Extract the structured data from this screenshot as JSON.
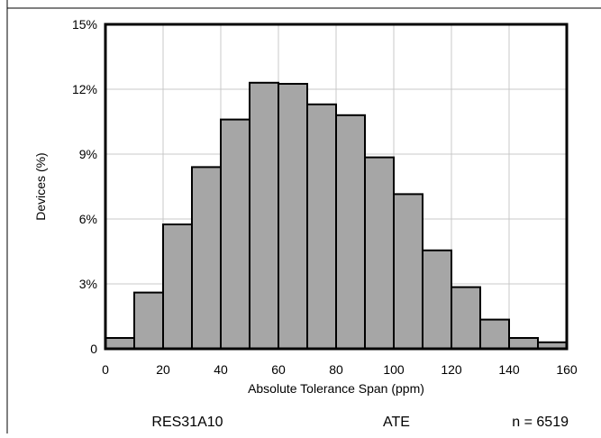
{
  "chart_data": {
    "type": "bar",
    "title": "",
    "xlabel": "Absolute Tolerance Span (ppm)",
    "ylabel": "Devices (%)",
    "xlim": [
      0,
      160
    ],
    "ylim": [
      0,
      15
    ],
    "xticks": [
      "0",
      "20",
      "40",
      "60",
      "80",
      "100",
      "120",
      "140",
      "160"
    ],
    "yticks": [
      "0",
      "3%",
      "6%",
      "9%",
      "12%",
      "15%"
    ],
    "bin_width": 10,
    "bin_starts": [
      0,
      10,
      20,
      30,
      40,
      50,
      60,
      70,
      80,
      90,
      100,
      110,
      120,
      130,
      140,
      150
    ],
    "values": [
      0.5,
      2.6,
      5.75,
      8.4,
      10.6,
      12.3,
      12.25,
      11.3,
      10.8,
      8.85,
      7.15,
      4.55,
      2.85,
      1.35,
      0.5,
      0.3
    ],
    "bar_color": "#a6a6a6",
    "grid": true,
    "legend": "none"
  },
  "footer": {
    "device": "RES31A10",
    "method": "ATE",
    "sample": "n = 6519"
  }
}
